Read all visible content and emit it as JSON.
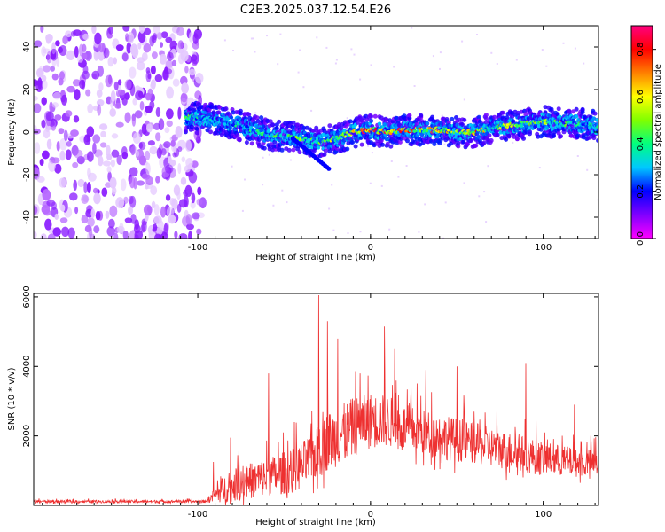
{
  "title": "C2E3.2025.037.12.54.E26",
  "chart_data": [
    {
      "type": "heatmap",
      "title": "C2E3.2025.037.12.54.E26",
      "xlabel": "Height of straight line (km)",
      "ylabel": "Frequency (Hz)",
      "xlim": [
        -195,
        132
      ],
      "ylim": [
        -50,
        50
      ],
      "x_ticks": [
        "-100",
        "0",
        "100"
      ],
      "y_ticks": [
        "-40",
        "-20",
        "0",
        "20",
        "40"
      ],
      "colorbar": {
        "label": "Normalized spectral amplitude",
        "range": [
          0,
          0.9
        ],
        "ticks": [
          "0.0",
          "0.2",
          "0.4",
          "0.6",
          "0.8"
        ],
        "colormap": [
          "#ff00ff",
          "#8000ff",
          "#0000ff",
          "#00c8ff",
          "#00ff80",
          "#80ff00",
          "#ffff00",
          "#ff8000",
          "#ff0000",
          "#ff0080"
        ]
      },
      "noise_region_x": [
        -195,
        -97
      ],
      "track": {
        "x": [
          -107,
          -90,
          -75,
          -60,
          -50,
          -40,
          -30,
          -20,
          -10,
          0,
          10,
          20,
          30,
          40,
          50,
          60,
          70,
          80,
          90,
          100,
          110,
          120,
          130
        ],
        "freq": [
          7,
          6,
          3,
          -1,
          -2,
          -3,
          -5,
          -3,
          0,
          1,
          0,
          1,
          1,
          1,
          0,
          0,
          2,
          3,
          4,
          5,
          4,
          4,
          3
        ],
        "amplitude": [
          0.5,
          0.35,
          0.4,
          0.45,
          0.5,
          0.55,
          0.5,
          0.6,
          0.7,
          0.9,
          0.85,
          0.8,
          0.7,
          0.75,
          0.6,
          0.85,
          0.55,
          0.6,
          0.5,
          0.55,
          0.5,
          0.45,
          0.4
        ]
      },
      "grid": false
    },
    {
      "type": "line",
      "xlabel": "Height of straight line (km)",
      "ylabel": "SNR (10 * v/v)",
      "xlim": [
        -195,
        132
      ],
      "ylim": [
        0,
        6100
      ],
      "x_ticks": [
        "-100",
        "0",
        "100"
      ],
      "y_ticks": [
        "2000",
        "4000",
        "6000"
      ],
      "color": "#ee3030",
      "envelope": {
        "x": [
          -195,
          -96,
          -92,
          -85,
          -75,
          -60,
          -45,
          -35,
          -30,
          -25,
          -20,
          -10,
          0,
          10,
          20,
          40,
          60,
          80,
          100,
          120,
          132
        ],
        "base": [
          100,
          100,
          180,
          350,
          500,
          650,
          800,
          1100,
          1300,
          1600,
          1700,
          2000,
          2200,
          2200,
          2000,
          1800,
          1600,
          1400,
          1200,
          1100,
          1100
        ],
        "amp": [
          80,
          80,
          300,
          800,
          1000,
          1100,
          1300,
          1400,
          1600,
          1700,
          1700,
          1700,
          1600,
          1500,
          1400,
          1300,
          1200,
          1100,
          1000,
          800,
          800
        ]
      },
      "peaks": [
        {
          "x": -91,
          "y": 1250
        },
        {
          "x": -81,
          "y": 1950
        },
        {
          "x": -59,
          "y": 3800
        },
        {
          "x": -44,
          "y": 2400
        },
        {
          "x": -30,
          "y": 6050
        },
        {
          "x": -25,
          "y": 5300
        },
        {
          "x": -19,
          "y": 4800
        },
        {
          "x": -6,
          "y": 3800
        },
        {
          "x": 8,
          "y": 5150
        },
        {
          "x": 14,
          "y": 4500
        },
        {
          "x": 32,
          "y": 3900
        },
        {
          "x": 50,
          "y": 4000
        },
        {
          "x": 90,
          "y": 4100
        },
        {
          "x": 118,
          "y": 2900
        }
      ],
      "grid": false
    }
  ]
}
